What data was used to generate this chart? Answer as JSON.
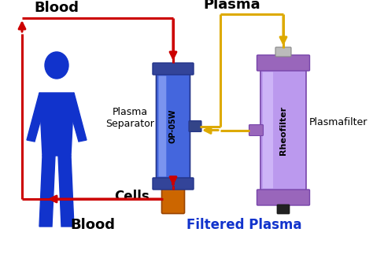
{
  "bg_color": "#ffffff",
  "blood_color": "#cc0000",
  "plasma_color": "#ddaa00",
  "blue_color": "#1133cc",
  "separator_color": "#4466dd",
  "sep_cap_color": "#334499",
  "sep_highlight": "#aabbff",
  "rheofilter_color": "#bb99ee",
  "rheo_cap_color": "#9966bb",
  "rheo_dark": "#7744aa",
  "cells_color": "#cc6600",
  "cells_edge": "#994400",
  "text_blood_top": "Blood",
  "text_plasma": "Plasma",
  "text_cells": "Cells",
  "text_filtered": "Filtered Plasma",
  "text_separator": "Plasma\nSeparator",
  "text_op05w": "OP-05W",
  "text_rheofilter": "Rheofilter",
  "text_plasmafilter": "Plasmafilter",
  "text_blood_bottom": "Blood",
  "figsize": [
    4.74,
    3.28
  ],
  "dpi": 100
}
